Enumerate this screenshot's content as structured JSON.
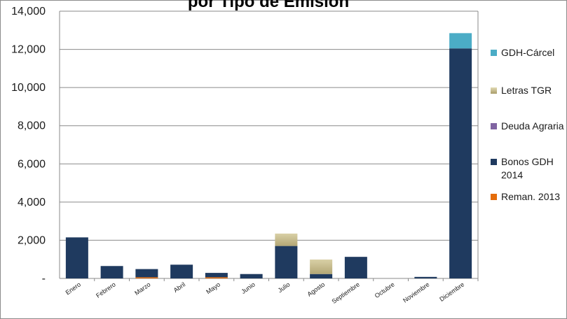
{
  "chart_data": {
    "type": "bar",
    "stacked": true,
    "title": "por Tipo de Emisión",
    "categories": [
      "Enero",
      "Febrero",
      "Marzo",
      "Abril",
      "Mayo",
      "Junio",
      "Julio",
      "Agosto",
      "Septiembre",
      "Octubre",
      "Noviembre",
      "Diciembre"
    ],
    "ylim": [
      0,
      14000
    ],
    "y_ticks": [
      "-",
      "2,000",
      "4,000",
      "6,000",
      "8,000",
      "10,000",
      "12,000",
      "14,000"
    ],
    "y_tick_values": [
      0,
      2000,
      4000,
      6000,
      8000,
      10000,
      12000,
      14000
    ],
    "grid": true,
    "legend_position": "right",
    "series": [
      {
        "name": "Reman. 2013",
        "color": "#e46c0a",
        "values": [
          0,
          0,
          60,
          0,
          60,
          0,
          0,
          0,
          0,
          0,
          0,
          0
        ]
      },
      {
        "name": "Bonos GDH 2014",
        "color": "#1f3a5f",
        "values": [
          2150,
          650,
          430,
          720,
          230,
          230,
          1700,
          230,
          1130,
          0,
          80,
          12050
        ]
      },
      {
        "name": "Deuda Agraria",
        "color": "#8064a2",
        "values": [
          0,
          0,
          0,
          0,
          0,
          0,
          0,
          0,
          0,
          0,
          0,
          0
        ]
      },
      {
        "name": "Letras TGR",
        "color": "#c4b98a",
        "values": [
          0,
          0,
          0,
          0,
          0,
          0,
          650,
          760,
          0,
          0,
          0,
          0
        ]
      },
      {
        "name": "GDH-Cárcel",
        "color": "#4bacc6",
        "values": [
          0,
          0,
          0,
          0,
          0,
          0,
          0,
          0,
          0,
          0,
          0,
          800
        ]
      }
    ]
  },
  "legend": {
    "items": [
      {
        "label": "GDH-Cárcel",
        "color": "#4bacc6"
      },
      {
        "label": "Letras TGR",
        "color": "#c4b98a"
      },
      {
        "label": "Deuda Agraria",
        "color": "#8064a2"
      },
      {
        "label": "Bonos GDH 2014",
        "color": "#1f3a5f"
      },
      {
        "label": "Reman. 2013",
        "color": "#e46c0a"
      }
    ]
  }
}
